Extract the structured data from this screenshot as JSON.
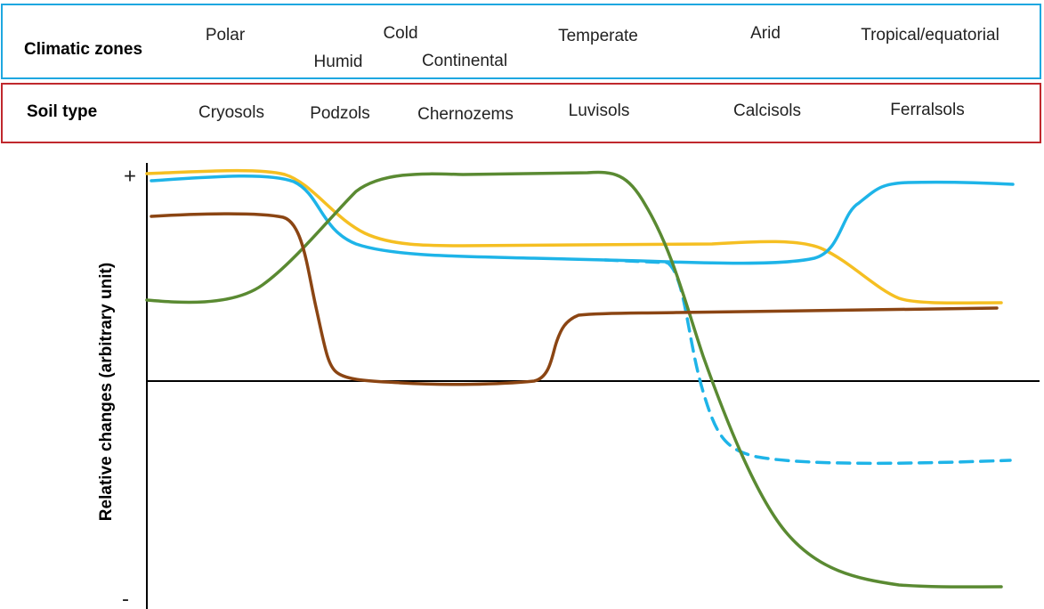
{
  "climatic_zones": {
    "label": "Climatic zones",
    "zones": [
      "Polar",
      "Cold",
      "Humid",
      "Continental",
      "Temperate",
      "Arid",
      "Tropical/equatorial"
    ]
  },
  "soil_type": {
    "label": "Soil type",
    "types": [
      "Cryosols",
      "Podzols",
      "Chernozems",
      "Luvisols",
      "Calcisols",
      "Ferralsols"
    ]
  },
  "axis": {
    "y_label": "Relative changes (arbitrary unit)",
    "plus": "+",
    "minus": "-"
  }
}
